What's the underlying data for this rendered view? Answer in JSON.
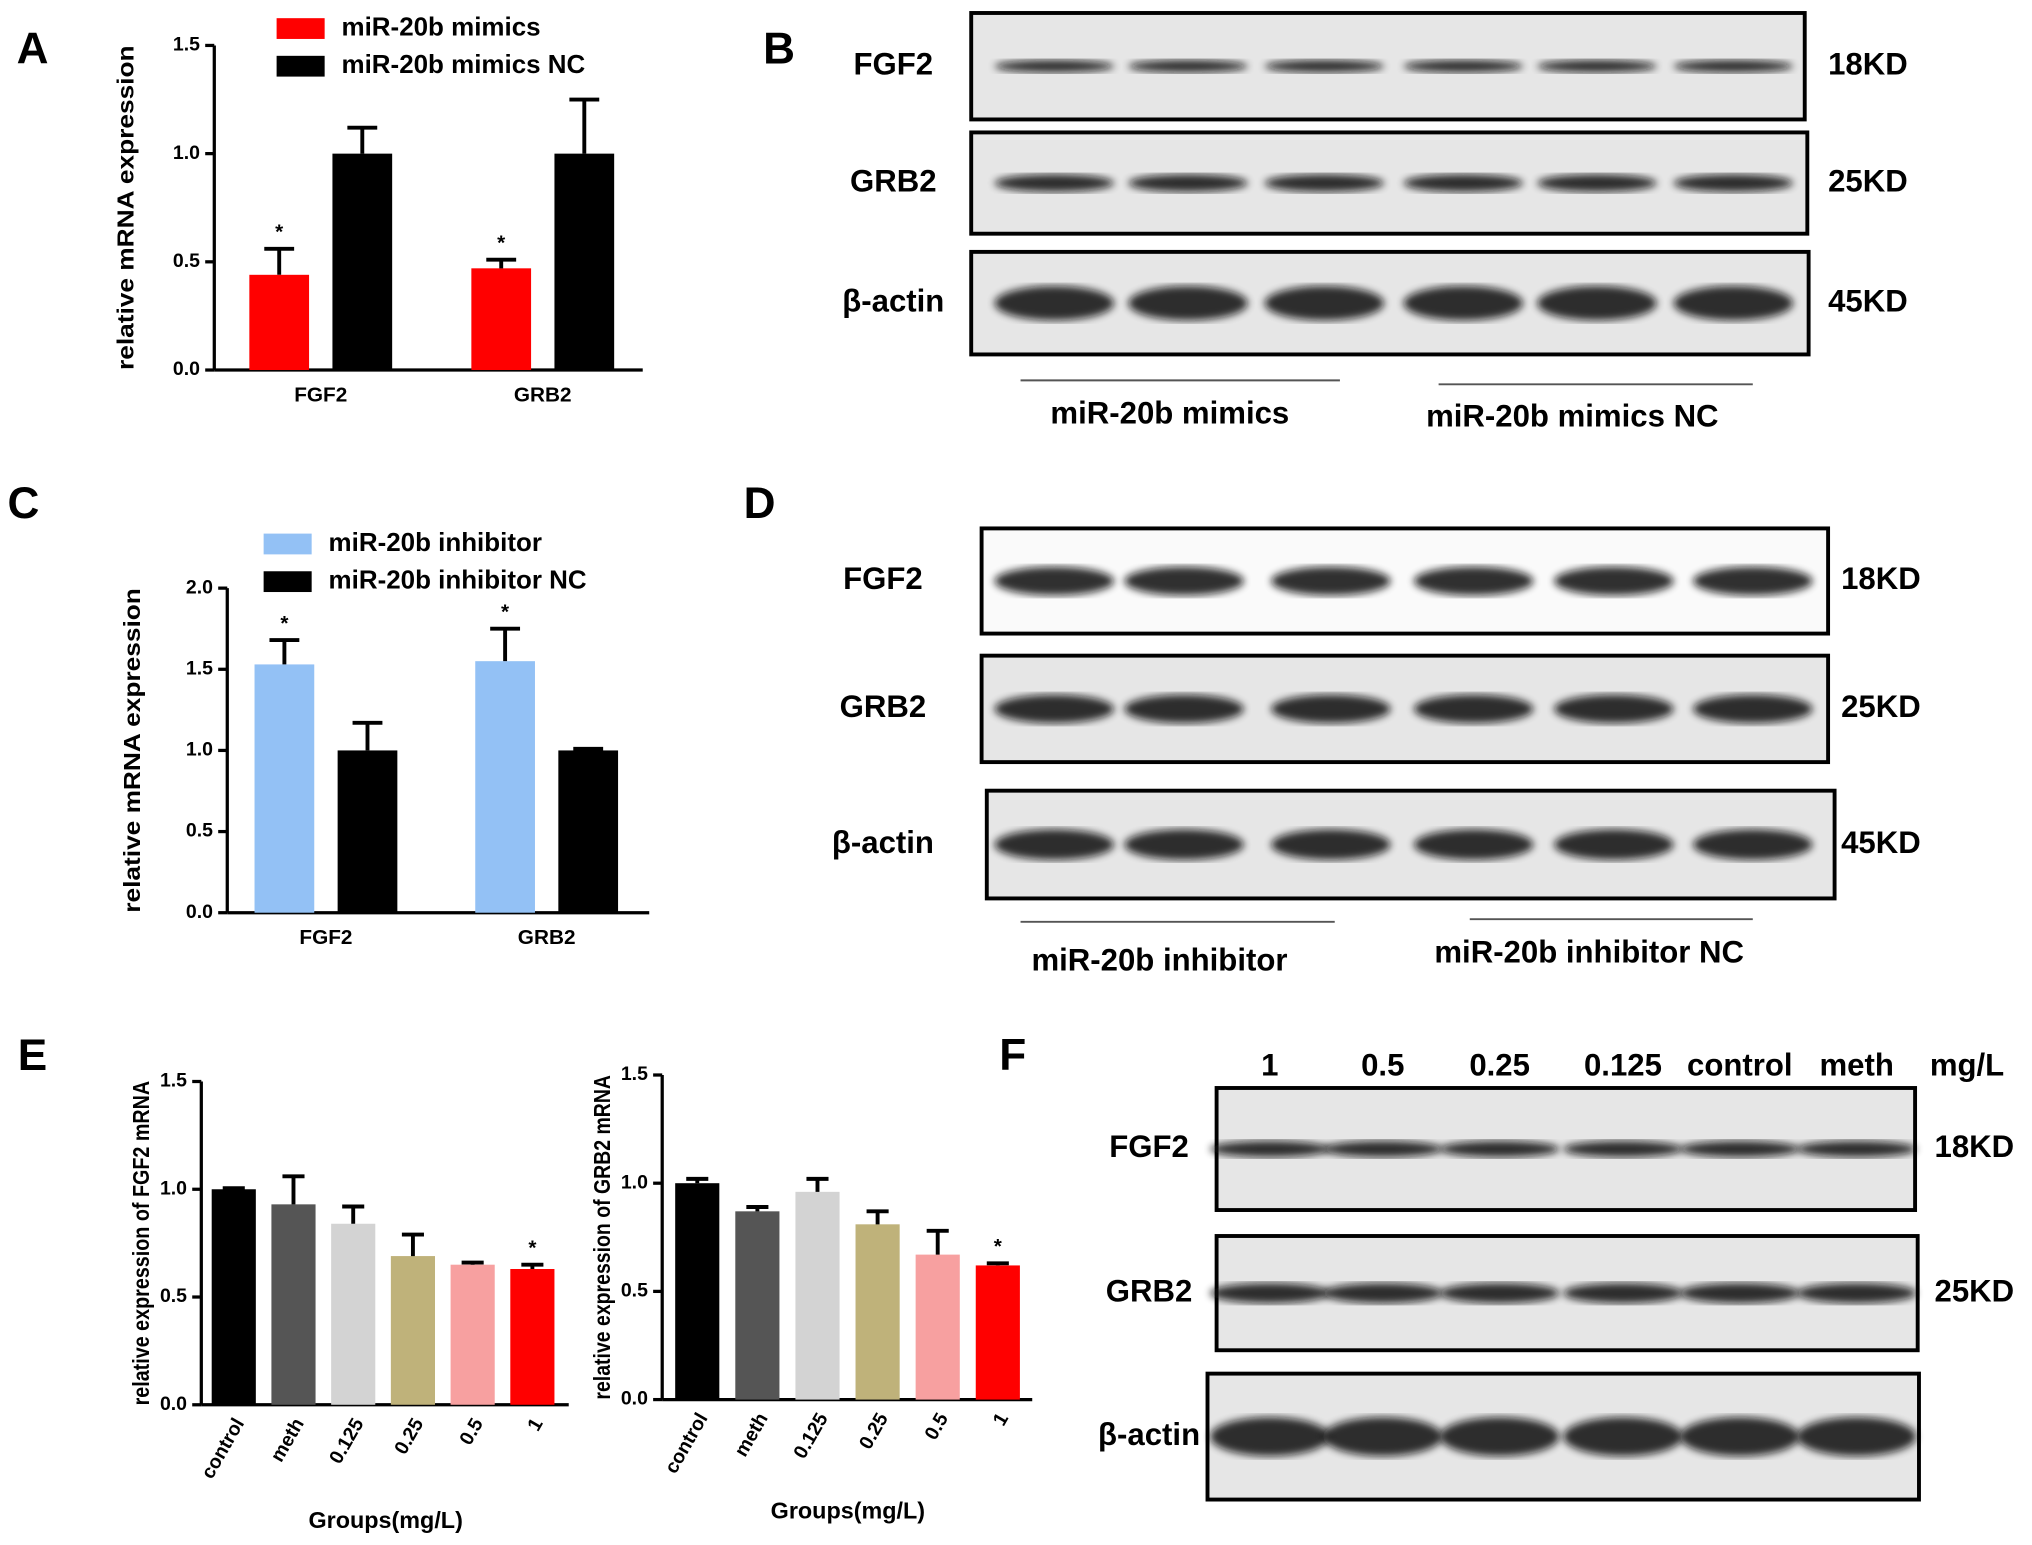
{
  "panels": [
    "A",
    "B",
    "C",
    "D",
    "E",
    "F"
  ],
  "chart_data": [
    {
      "type": "bar",
      "ylabel": "relative mRNA expression",
      "categories": [
        "FGF2",
        "GRB2"
      ],
      "series": [
        {
          "name": "miR-20b mimics",
          "color": "#ff0000",
          "values": [
            0.44,
            0.47
          ],
          "errors": [
            0.12,
            0.04
          ]
        },
        {
          "name": "miR-20b mimics NC",
          "color": "#000000",
          "values": [
            1.0,
            1.0
          ],
          "errors": [
            0.12,
            0.25
          ]
        }
      ],
      "annotations": [
        "*",
        "*"
      ],
      "ylim": [
        0,
        1.5
      ],
      "yticks": [
        {
          "value": 0,
          "label": "0.0"
        },
        0.5,
        {
          "value": 1,
          "label": "1.0"
        },
        1.5
      ]
    },
    {
      "type": "bar",
      "ylabel": "relative mRNA expression",
      "categories": [
        "FGF2",
        "GRB2"
      ],
      "series": [
        {
          "name": "miR-20b inhibitor",
          "color": "#93c1f5",
          "values": [
            1.53,
            1.55
          ],
          "errors": [
            0.15,
            0.2
          ]
        },
        {
          "name": "miR-20b inhibitor NC",
          "color": "#000000",
          "values": [
            1.0,
            1.0
          ],
          "errors": [
            0.17,
            0.01
          ]
        }
      ],
      "annotations": [
        "*",
        "*"
      ],
      "ylim": [
        0,
        2
      ],
      "yticks": [
        {
          "value": 0,
          "label": "0.0"
        },
        0.5,
        {
          "value": 1,
          "label": "1.0"
        },
        1.5,
        {
          "value": 2,
          "label": "2.0"
        }
      ]
    },
    {
      "type": "bar",
      "ylabel": "relative expression of FGF2 mRNA",
      "xlabel": "Groups(mg/L)",
      "categories": [
        "control",
        "meth",
        "0.125",
        "0.25",
        "0.5",
        "1"
      ],
      "values": [
        1.0,
        0.93,
        0.84,
        0.69,
        0.65,
        0.63
      ],
      "errors": [
        0.005,
        0.13,
        0.08,
        0.1,
        0.01,
        0.02
      ],
      "colors": [
        "#000000",
        "#555555",
        "#d3d3d3",
        "#bfb27a",
        "#f7a0a0",
        "#ff0000"
      ],
      "annotations": [
        "*"
      ],
      "ylim": [
        0,
        1.5
      ],
      "yticks": [
        {
          "value": 0,
          "label": "0.0"
        },
        0.5,
        {
          "value": 1,
          "label": "1.0"
        },
        1.5
      ]
    },
    {
      "type": "bar",
      "ylabel": "relative expression of GRB2 mRNA",
      "xlabel": "Groups(mg/L)",
      "categories": [
        "control",
        "meth",
        "0.125",
        "0.25",
        "0.5",
        "1"
      ],
      "values": [
        1.0,
        0.87,
        0.96,
        0.81,
        0.67,
        0.62
      ],
      "errors": [
        0.02,
        0.02,
        0.06,
        0.06,
        0.11,
        0.01
      ],
      "colors": [
        "#000000",
        "#555555",
        "#d3d3d3",
        "#bfb27a",
        "#f7a0a0",
        "#ff0000"
      ],
      "annotations": [
        "*"
      ],
      "ylim": [
        0,
        1.5
      ],
      "yticks": [
        {
          "value": 0,
          "label": "0.0"
        },
        0.5,
        {
          "value": 1,
          "label": "1.0"
        },
        1.5
      ]
    }
  ],
  "blots": [
    {
      "rows": [
        {
          "protein": "FGF2",
          "size": "18KD"
        },
        {
          "protein": "GRB2",
          "size": "25KD"
        },
        {
          "protein": "β-actin",
          "size": "45KD"
        }
      ],
      "groups": [
        "miR-20b mimics",
        "miR-20b mimics NC"
      ]
    },
    {
      "rows": [
        {
          "protein": "FGF2",
          "size": "18KD"
        },
        {
          "protein": "GRB2",
          "size": "25KD"
        },
        {
          "protein": "β-actin",
          "size": "45KD"
        }
      ],
      "groups": [
        "miR-20b inhibitor",
        "miR-20b inhibitor NC"
      ]
    },
    {
      "lanes": [
        "1",
        "0.5",
        "0.25",
        "0.125",
        "control",
        "meth"
      ],
      "unit": "mg/L",
      "rows": [
        {
          "protein": "FGF2",
          "size": "18KD"
        },
        {
          "protein": "GRB2",
          "size": "25KD"
        },
        {
          "protein": "β-actin"
        }
      ]
    }
  ]
}
